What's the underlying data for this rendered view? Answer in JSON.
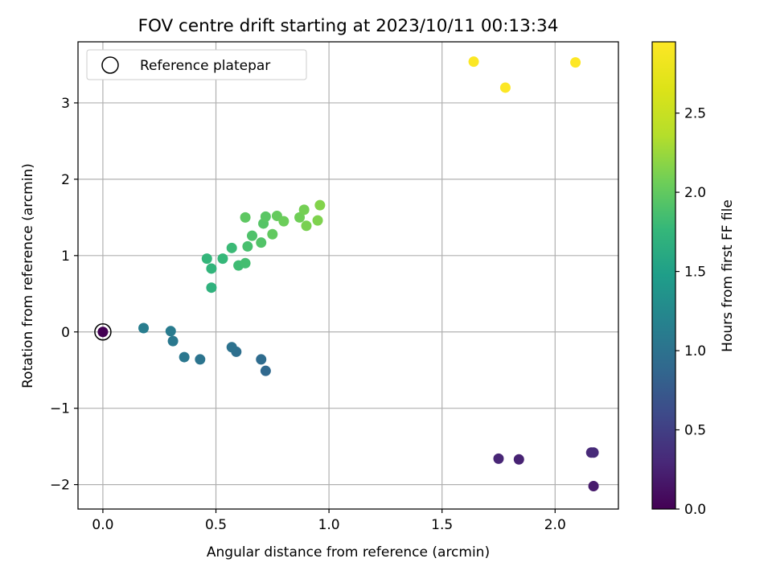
{
  "chart_data": {
    "type": "scatter",
    "title": "FOV centre drift starting at 2023/10/11 00:13:34",
    "xlabel": "Angular distance from reference (arcmin)",
    "ylabel": "Rotation from reference (arcmin)",
    "xlim": [
      -0.11,
      2.28
    ],
    "ylim": [
      -2.32,
      3.8
    ],
    "xticks": [
      0.0,
      0.5,
      1.0,
      1.5,
      2.0
    ],
    "xtick_labels": [
      "0.0",
      "0.5",
      "1.0",
      "1.5",
      "2.0"
    ],
    "yticks": [
      -2,
      -1,
      0,
      1,
      2,
      3
    ],
    "ytick_labels": [
      "−2",
      "−1",
      "0",
      "1",
      "2",
      "3"
    ],
    "grid": true,
    "colormap": "viridis",
    "colorbar": {
      "label": "Hours from first FF file",
      "range": [
        0.0,
        2.95
      ],
      "ticks": [
        0.0,
        0.5,
        1.0,
        1.5,
        2.0,
        2.5
      ],
      "tick_labels": [
        "0.0",
        "0.5",
        "1.0",
        "1.5",
        "2.0",
        "2.5"
      ]
    },
    "legend": {
      "label": "Reference platepar",
      "placement": "top-left"
    },
    "reference_point": {
      "x": 0.0,
      "y": 0.0
    },
    "points": [
      {
        "x": 0.0,
        "y": 0.0,
        "c": 0.0
      },
      {
        "x": 2.17,
        "y": -2.02,
        "c": 0.2
      },
      {
        "x": 1.84,
        "y": -1.67,
        "c": 0.25
      },
      {
        "x": 1.75,
        "y": -1.66,
        "c": 0.28
      },
      {
        "x": 2.16,
        "y": -1.58,
        "c": 0.3
      },
      {
        "x": 2.17,
        "y": -1.58,
        "c": 0.32
      },
      {
        "x": 0.72,
        "y": -0.51,
        "c": 0.9
      },
      {
        "x": 0.7,
        "y": -0.36,
        "c": 0.93
      },
      {
        "x": 0.59,
        "y": -0.26,
        "c": 0.97
      },
      {
        "x": 0.57,
        "y": -0.2,
        "c": 1.0
      },
      {
        "x": 0.43,
        "y": -0.36,
        "c": 1.02
      },
      {
        "x": 0.36,
        "y": -0.33,
        "c": 1.05
      },
      {
        "x": 0.31,
        "y": -0.12,
        "c": 1.07
      },
      {
        "x": 0.3,
        "y": 0.01,
        "c": 1.1
      },
      {
        "x": 0.18,
        "y": 0.05,
        "c": 1.12
      },
      {
        "x": 0.48,
        "y": 0.58,
        "c": 1.7
      },
      {
        "x": 0.48,
        "y": 0.83,
        "c": 1.73
      },
      {
        "x": 0.46,
        "y": 0.96,
        "c": 1.75
      },
      {
        "x": 0.53,
        "y": 0.96,
        "c": 1.77
      },
      {
        "x": 0.57,
        "y": 1.1,
        "c": 1.8
      },
      {
        "x": 0.6,
        "y": 0.87,
        "c": 1.82
      },
      {
        "x": 0.63,
        "y": 0.9,
        "c": 1.85
      },
      {
        "x": 0.64,
        "y": 1.12,
        "c": 1.87
      },
      {
        "x": 0.66,
        "y": 1.26,
        "c": 1.9
      },
      {
        "x": 0.7,
        "y": 1.17,
        "c": 1.92
      },
      {
        "x": 0.71,
        "y": 1.42,
        "c": 1.94
      },
      {
        "x": 0.72,
        "y": 1.51,
        "c": 1.96
      },
      {
        "x": 0.63,
        "y": 1.5,
        "c": 1.98
      },
      {
        "x": 0.75,
        "y": 1.28,
        "c": 2.0
      },
      {
        "x": 0.77,
        "y": 1.52,
        "c": 2.02
      },
      {
        "x": 0.8,
        "y": 1.45,
        "c": 2.05
      },
      {
        "x": 0.87,
        "y": 1.5,
        "c": 2.07
      },
      {
        "x": 0.89,
        "y": 1.6,
        "c": 2.09
      },
      {
        "x": 0.9,
        "y": 1.39,
        "c": 2.11
      },
      {
        "x": 0.95,
        "y": 1.46,
        "c": 2.13
      },
      {
        "x": 0.96,
        "y": 1.66,
        "c": 2.15
      },
      {
        "x": 1.64,
        "y": 3.54,
        "c": 2.93
      },
      {
        "x": 1.78,
        "y": 3.2,
        "c": 2.94
      },
      {
        "x": 2.09,
        "y": 3.53,
        "c": 2.95
      }
    ]
  }
}
